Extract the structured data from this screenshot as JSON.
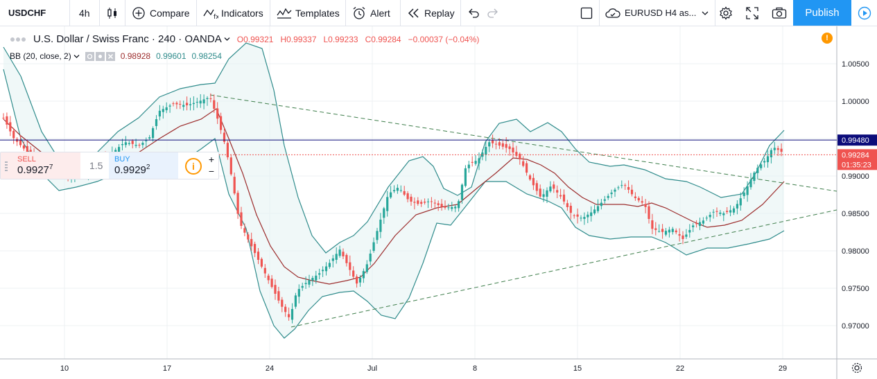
{
  "toolbar": {
    "symbol": "USDCHF",
    "interval": "4h",
    "compare_label": "Compare",
    "indicators_label": "Indicators",
    "templates_label": "Templates",
    "alert_label": "Alert",
    "replay_label": "Replay",
    "layout_name": "EURUSD H4 as...",
    "publish_label": "Publish"
  },
  "legend": {
    "title": "U.S. Dollar / Swiss Franc · 240 · OANDA",
    "open": "O0.99321",
    "high": "H0.99337",
    "low": "L0.99233",
    "close": "C0.99284",
    "change": "−0.00037 (−0.04%)",
    "bb_label": "BB (20, close, 2)",
    "bb_basis": "0.98928",
    "bb_upper": "0.99601",
    "bb_lower": "0.98254"
  },
  "trade": {
    "sell_label": "SELL",
    "sell_price_main": "0.9927",
    "sell_price_sup": "7",
    "spread": "1.5",
    "buy_label": "BUY",
    "buy_price_main": "0.9929",
    "buy_price_sup": "2"
  },
  "price_axis": {
    "ticks": [
      "1.00500",
      "1.00000",
      "0.99500",
      "0.99000",
      "0.98500",
      "0.98000",
      "0.97500",
      "0.97000"
    ],
    "hline_price": "0.99480",
    "last_price": "0.99284",
    "countdown": "01:35:23"
  },
  "time_axis": {
    "ticks": [
      "10",
      "17",
      "24",
      "Jul",
      "8",
      "15",
      "22",
      "29"
    ]
  },
  "colors": {
    "up": "#26a69a",
    "down": "#ef5350",
    "bb_band": "#2e8b8b",
    "bb_basis": "#9c2c2c",
    "hline": "#0c0c7a",
    "accent": "#2196f3"
  },
  "chart_data": {
    "type": "candlestick",
    "price_ylim": [
      0.9655,
      1.0092
    ],
    "horizontal_line": 0.9948,
    "last_price": 0.99284
  }
}
